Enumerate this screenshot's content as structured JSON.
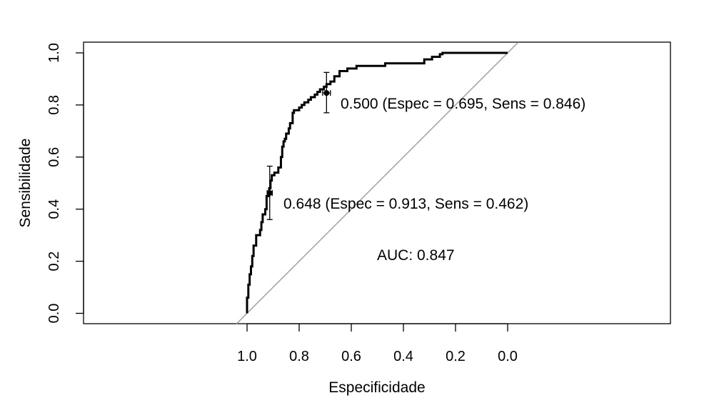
{
  "chart_data": {
    "type": "line",
    "xlabel": "Especificidade",
    "ylabel": "Sensibilidade",
    "x_reversed": true,
    "xlim": [
      1.0,
      0.0
    ],
    "ylim": [
      0.0,
      1.0
    ],
    "x_ticks": [
      "1.0",
      "0.8",
      "0.6",
      "0.4",
      "0.2",
      "0.0"
    ],
    "y_ticks": [
      "0.0",
      "0.2",
      "0.4",
      "0.6",
      "0.8",
      "1.0"
    ],
    "grid": false,
    "legend": "none",
    "series": [
      {
        "line_color": "#000000",
        "specificity": [
          1.0,
          1.0,
          0.995,
          0.995,
          0.99,
          0.99,
          0.985,
          0.985,
          0.98,
          0.98,
          0.975,
          0.975,
          0.965,
          0.965,
          0.95,
          0.95,
          0.945,
          0.945,
          0.94,
          0.94,
          0.93,
          0.93,
          0.925,
          0.925,
          0.915,
          0.915,
          0.91,
          0.91,
          0.905,
          0.905,
          0.895,
          0.895,
          0.88,
          0.88,
          0.87,
          0.87,
          0.865,
          0.865,
          0.86,
          0.86,
          0.855,
          0.855,
          0.85,
          0.85,
          0.84,
          0.84,
          0.835,
          0.835,
          0.825,
          0.825,
          0.82,
          0.82,
          0.8,
          0.8,
          0.79,
          0.79,
          0.78,
          0.78,
          0.765,
          0.765,
          0.755,
          0.755,
          0.74,
          0.74,
          0.73,
          0.73,
          0.72,
          0.72,
          0.705,
          0.705,
          0.695,
          0.695,
          0.68,
          0.68,
          0.665,
          0.665,
          0.645,
          0.645,
          0.615,
          0.615,
          0.58,
          0.58,
          0.47,
          0.47,
          0.32,
          0.32,
          0.29,
          0.29,
          0.26,
          0.26,
          0.25,
          0.25,
          0.0
        ],
        "sensitivity": [
          0.0,
          0.06,
          0.06,
          0.11,
          0.11,
          0.15,
          0.15,
          0.18,
          0.18,
          0.22,
          0.22,
          0.26,
          0.26,
          0.3,
          0.3,
          0.32,
          0.32,
          0.35,
          0.35,
          0.38,
          0.38,
          0.4,
          0.4,
          0.45,
          0.45,
          0.48,
          0.48,
          0.51,
          0.51,
          0.53,
          0.53,
          0.54,
          0.54,
          0.56,
          0.56,
          0.6,
          0.6,
          0.64,
          0.64,
          0.66,
          0.66,
          0.67,
          0.67,
          0.69,
          0.69,
          0.71,
          0.71,
          0.73,
          0.73,
          0.77,
          0.77,
          0.78,
          0.78,
          0.79,
          0.79,
          0.8,
          0.8,
          0.81,
          0.81,
          0.82,
          0.82,
          0.83,
          0.83,
          0.84,
          0.84,
          0.85,
          0.85,
          0.86,
          0.86,
          0.87,
          0.87,
          0.88,
          0.88,
          0.89,
          0.89,
          0.91,
          0.91,
          0.93,
          0.93,
          0.94,
          0.94,
          0.95,
          0.95,
          0.96,
          0.96,
          0.975,
          0.975,
          0.985,
          0.985,
          0.995,
          0.995,
          1.0,
          1.0
        ]
      }
    ],
    "reference_line": {
      "from": [
        1.0,
        0.0
      ],
      "to": [
        0.0,
        1.0
      ],
      "color": "#a6a6a6"
    },
    "thresholds": [
      {
        "label": "0.500 (Espec = 0.695, Sens = 0.846)",
        "specificity": 0.695,
        "sensitivity": 0.846,
        "sens_ci": [
          0.77,
          0.925
        ],
        "spec_ci": [
          0.68,
          0.71
        ]
      },
      {
        "label": "0.648 (Espec = 0.913, Sens = 0.462)",
        "specificity": 0.913,
        "sensitivity": 0.462,
        "sens_ci": [
          0.36,
          0.565
        ],
        "spec_ci": [
          0.903,
          0.923
        ]
      }
    ],
    "auc_label": "AUC: 0.847"
  }
}
